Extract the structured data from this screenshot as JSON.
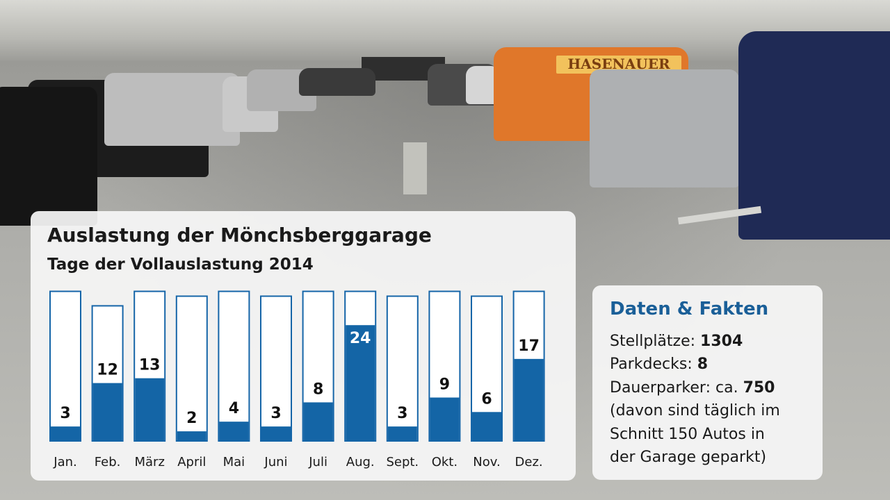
{
  "colors": {
    "bar_fill": "#1465a6",
    "bar_outline": "#1565a8",
    "heading_blue": "#1a5f98",
    "panel_bg": "#f6f6f6"
  },
  "van_lettering": "HASENAUER",
  "chart_data": {
    "type": "bar",
    "title": "Auslastung der Mönchsberggarage",
    "subtitle": "Tage der Vollauslastung 2014",
    "categories": [
      "Jan.",
      "Feb.",
      "März",
      "April",
      "Mai",
      "Juni",
      "Juli",
      "Aug.",
      "Sept.",
      "Okt.",
      "Nov.",
      "Dez."
    ],
    "values": [
      3,
      12,
      13,
      2,
      4,
      3,
      8,
      24,
      3,
      9,
      6,
      17
    ],
    "value_labels": [
      "3",
      "12",
      "13",
      "2",
      "4",
      "3",
      "8",
      "24",
      "3",
      "9",
      "6",
      "17"
    ],
    "month_days": [
      31,
      28,
      31,
      30,
      31,
      30,
      31,
      31,
      30,
      31,
      30,
      31
    ],
    "xlabel": "",
    "ylabel": "",
    "grid": false,
    "legend": "none"
  },
  "facts": {
    "heading": "Daten & Fakten",
    "stellplaetze_label": "Stellplätze:",
    "stellplaetze_value": "1304",
    "parkdecks_label": "Parkdecks:",
    "parkdecks_value": "8",
    "dauerparker_label": "Dauerparker: ca.",
    "dauerparker_value": "750",
    "note_line1": "(davon sind täglich im",
    "note_line2": "Schnitt 150 Autos in",
    "note_line3": "der Garage geparkt)"
  }
}
